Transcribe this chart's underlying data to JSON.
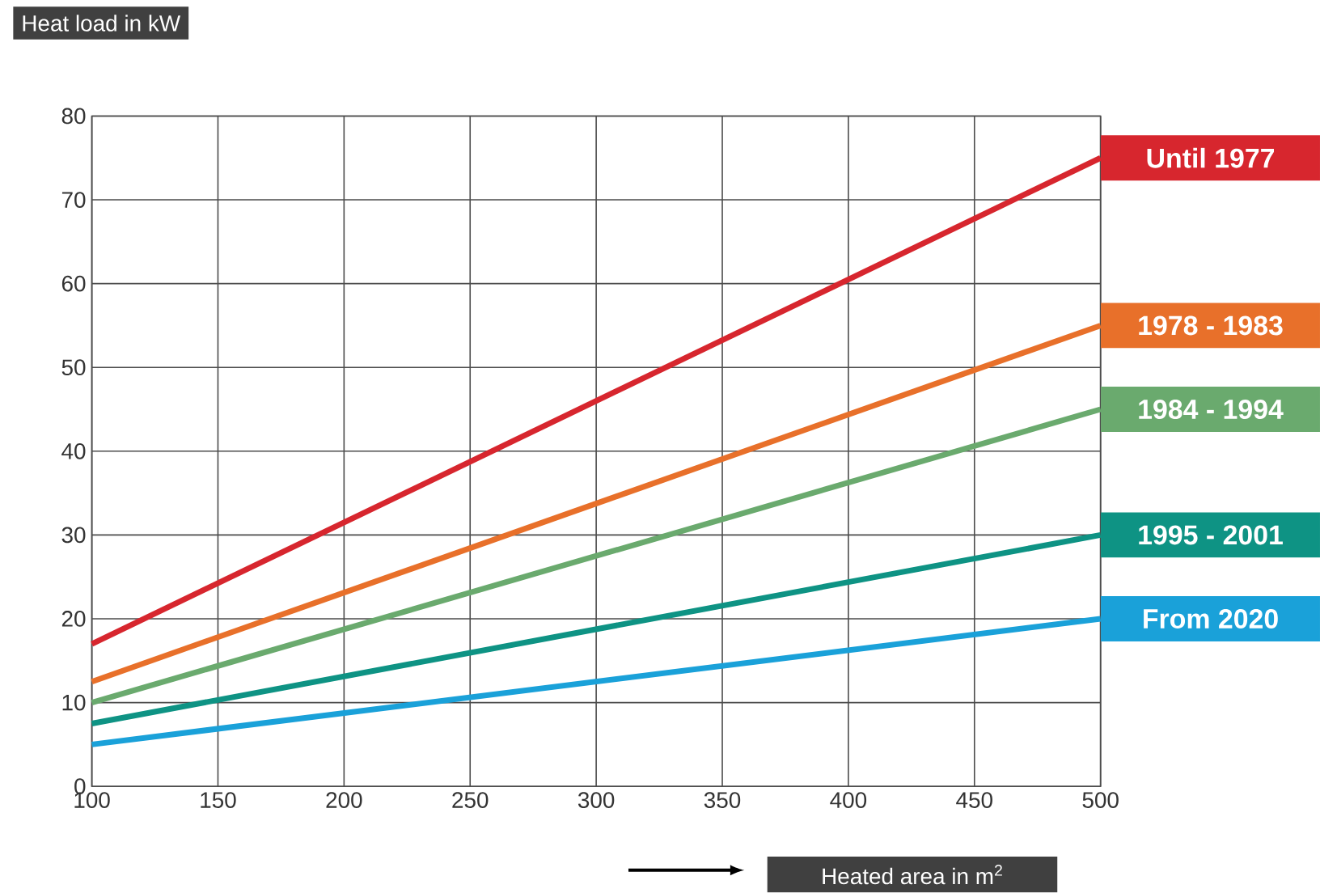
{
  "chart_data": {
    "type": "line",
    "title": "Heat load in kW",
    "xlabel": "Heated area in m$^{2}$",
    "x": [
      100,
      500
    ],
    "series": [
      {
        "name": "Until 1977",
        "color": "#d7262e",
        "values": [
          17,
          75
        ]
      },
      {
        "name": "1978 - 1983",
        "color": "#e8702a",
        "values": [
          12.5,
          55
        ]
      },
      {
        "name": "1984 - 1994",
        "color": "#6aaa6e",
        "values": [
          10,
          45
        ]
      },
      {
        "name": "1995 - 2001",
        "color": "#0e9384",
        "values": [
          7.5,
          30
        ]
      },
      {
        "name": "From 2020",
        "color": "#1aa1d9",
        "values": [
          5,
          20
        ]
      }
    ],
    "xlim": [
      100,
      500
    ],
    "ylim": [
      0,
      80
    ],
    "xticks": [
      100,
      150,
      200,
      250,
      300,
      350,
      400,
      450,
      500
    ],
    "yticks": [
      0,
      10,
      20,
      30,
      40,
      50,
      60,
      70,
      80
    ],
    "grid": true,
    "legend": "right",
    "marker": "none",
    "line_style": "solid"
  }
}
